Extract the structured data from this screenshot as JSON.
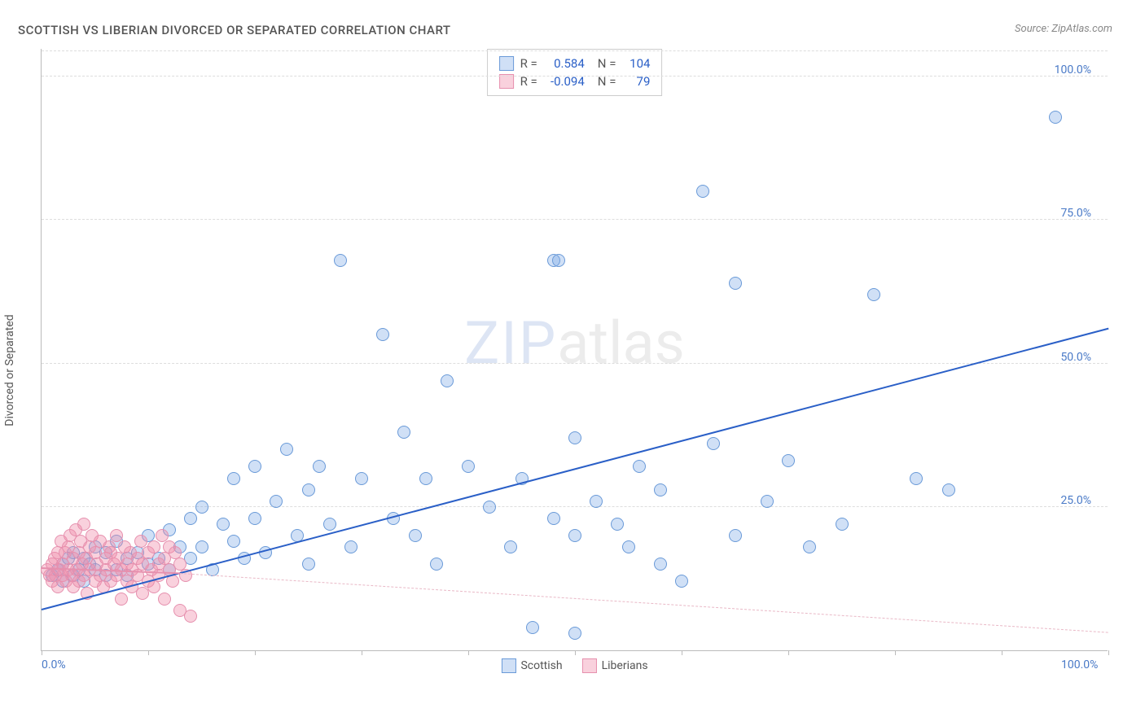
{
  "title": "SCOTTISH VS LIBERIAN DIVORCED OR SEPARATED CORRELATION CHART",
  "source": "Source: ZipAtlas.com",
  "ylabel": "Divorced or Separated",
  "watermark": {
    "strong": "ZIP",
    "light": "atlas"
  },
  "chart": {
    "type": "scatter",
    "xlim": [
      0,
      100
    ],
    "ylim": [
      0,
      105
    ],
    "yticks": [
      25,
      50,
      75,
      100
    ],
    "ytick_labels": [
      "25.0%",
      "50.0%",
      "75.0%",
      "100.0%"
    ],
    "xticks": [
      0,
      10,
      20,
      30,
      40,
      50,
      60,
      70,
      80,
      90,
      100
    ],
    "xtick_labels": {
      "0": "0.0%",
      "100": "100.0%"
    },
    "background_color": "#ffffff",
    "grid_color": "#dddddd",
    "axis_color": "#bbbbbb",
    "marker_radius": 8,
    "marker_stroke": 1.2,
    "series": [
      {
        "key": "scottish",
        "label": "Scottish",
        "fill": "rgba(120,165,230,0.35)",
        "stroke": "#6a9ad8",
        "R": "0.584",
        "N": "104",
        "trend": {
          "x1": 0,
          "y1": 7,
          "x2": 100,
          "y2": 56,
          "color": "#2a5fc7",
          "width": 2.2,
          "dash": "none"
        },
        "points": [
          [
            1,
            13
          ],
          [
            1.5,
            14
          ],
          [
            2,
            12
          ],
          [
            2,
            15
          ],
          [
            2.5,
            16
          ],
          [
            3,
            13
          ],
          [
            3,
            17
          ],
          [
            3.5,
            14
          ],
          [
            4,
            16
          ],
          [
            4,
            12
          ],
          [
            4.5,
            15
          ],
          [
            5,
            14
          ],
          [
            5,
            18
          ],
          [
            6,
            13
          ],
          [
            6,
            17
          ],
          [
            7,
            14
          ],
          [
            7,
            19
          ],
          [
            8,
            16
          ],
          [
            8,
            13
          ],
          [
            9,
            17
          ],
          [
            10,
            15
          ],
          [
            10,
            20
          ],
          [
            11,
            16
          ],
          [
            12,
            21
          ],
          [
            12,
            14
          ],
          [
            13,
            18
          ],
          [
            14,
            23
          ],
          [
            14,
            16
          ],
          [
            15,
            25
          ],
          [
            15,
            18
          ],
          [
            16,
            14
          ],
          [
            17,
            22
          ],
          [
            18,
            19
          ],
          [
            18,
            30
          ],
          [
            19,
            16
          ],
          [
            20,
            23
          ],
          [
            20,
            32
          ],
          [
            21,
            17
          ],
          [
            22,
            26
          ],
          [
            23,
            35
          ],
          [
            24,
            20
          ],
          [
            25,
            28
          ],
          [
            25,
            15
          ],
          [
            26,
            32
          ],
          [
            27,
            22
          ],
          [
            28,
            68
          ],
          [
            29,
            18
          ],
          [
            30,
            30
          ],
          [
            32,
            55
          ],
          [
            33,
            23
          ],
          [
            34,
            38
          ],
          [
            35,
            20
          ],
          [
            36,
            30
          ],
          [
            37,
            15
          ],
          [
            38,
            47
          ],
          [
            40,
            32
          ],
          [
            42,
            25
          ],
          [
            44,
            18
          ],
          [
            45,
            30
          ],
          [
            46,
            4
          ],
          [
            48,
            23
          ],
          [
            48,
            68
          ],
          [
            48.5,
            68
          ],
          [
            50,
            37
          ],
          [
            50,
            20
          ],
          [
            50,
            3
          ],
          [
            52,
            26
          ],
          [
            54,
            22
          ],
          [
            55,
            18
          ],
          [
            56,
            32
          ],
          [
            58,
            15
          ],
          [
            58,
            28
          ],
          [
            60,
            12
          ],
          [
            62,
            80
          ],
          [
            63,
            36
          ],
          [
            65,
            64
          ],
          [
            65,
            20
          ],
          [
            68,
            26
          ],
          [
            70,
            33
          ],
          [
            72,
            18
          ],
          [
            75,
            22
          ],
          [
            78,
            62
          ],
          [
            82,
            30
          ],
          [
            85,
            28
          ],
          [
            95,
            93
          ]
        ]
      },
      {
        "key": "liberians",
        "label": "Liberians",
        "fill": "rgba(240,140,170,0.4)",
        "stroke": "#e690ae",
        "R": "-0.094",
        "N": "79",
        "trend_solid": {
          "x1": 0,
          "y1": 14.2,
          "x2": 13,
          "y2": 13.3,
          "color": "#e690ae",
          "width": 2,
          "dash": "none"
        },
        "trend_dash": {
          "x1": 13,
          "y1": 13.3,
          "x2": 100,
          "y2": 3,
          "color": "#e9b8c6",
          "width": 1.2,
          "dash": "4,4"
        },
        "points": [
          [
            0.5,
            14
          ],
          [
            0.8,
            13
          ],
          [
            1,
            15
          ],
          [
            1,
            12
          ],
          [
            1.2,
            16
          ],
          [
            1.3,
            13
          ],
          [
            1.5,
            17
          ],
          [
            1.5,
            11
          ],
          [
            1.7,
            14
          ],
          [
            1.8,
            19
          ],
          [
            2,
            13
          ],
          [
            2,
            15
          ],
          [
            2.2,
            17
          ],
          [
            2.3,
            12
          ],
          [
            2.5,
            18
          ],
          [
            2.5,
            14
          ],
          [
            2.7,
            20
          ],
          [
            2.8,
            13
          ],
          [
            3,
            16
          ],
          [
            3,
            11
          ],
          [
            3.2,
            21
          ],
          [
            3.3,
            14
          ],
          [
            3.5,
            17
          ],
          [
            3.5,
            12
          ],
          [
            3.7,
            19
          ],
          [
            3.8,
            15
          ],
          [
            4,
            22
          ],
          [
            4,
            13
          ],
          [
            4.2,
            16
          ],
          [
            4.3,
            10
          ],
          [
            4.5,
            18
          ],
          [
            4.5,
            14
          ],
          [
            4.7,
            20
          ],
          [
            5,
            12
          ],
          [
            5,
            17
          ],
          [
            5.2,
            15
          ],
          [
            5.5,
            13
          ],
          [
            5.5,
            19
          ],
          [
            5.8,
            11
          ],
          [
            6,
            16
          ],
          [
            6,
            14
          ],
          [
            6.3,
            18
          ],
          [
            6.5,
            12
          ],
          [
            6.5,
            17
          ],
          [
            6.8,
            15
          ],
          [
            7,
            20
          ],
          [
            7,
            13
          ],
          [
            7.2,
            16
          ],
          [
            7.5,
            14
          ],
          [
            7.5,
            9
          ],
          [
            7.8,
            18
          ],
          [
            8,
            12
          ],
          [
            8,
            15
          ],
          [
            8.3,
            17
          ],
          [
            8.5,
            11
          ],
          [
            8.5,
            14
          ],
          [
            9,
            16
          ],
          [
            9,
            13
          ],
          [
            9.3,
            19
          ],
          [
            9.5,
            10
          ],
          [
            9.5,
            15
          ],
          [
            10,
            17
          ],
          [
            10,
            12
          ],
          [
            10.3,
            14
          ],
          [
            10.5,
            18
          ],
          [
            10.5,
            11
          ],
          [
            11,
            15
          ],
          [
            11,
            13
          ],
          [
            11.3,
            20
          ],
          [
            11.5,
            9
          ],
          [
            11.5,
            16
          ],
          [
            12,
            14
          ],
          [
            12,
            18
          ],
          [
            12.3,
            12
          ],
          [
            12.5,
            17
          ],
          [
            13,
            7
          ],
          [
            13,
            15
          ],
          [
            13.5,
            13
          ],
          [
            14,
            6
          ]
        ]
      }
    ]
  },
  "stats_box": {
    "rows": [
      {
        "swatch_fill": "rgba(120,165,230,0.35)",
        "swatch_stroke": "#6a9ad8",
        "r_label": "R =",
        "r_val": "0.584",
        "n_label": "N =",
        "n_val": "104"
      },
      {
        "swatch_fill": "rgba(240,140,170,0.4)",
        "swatch_stroke": "#e690ae",
        "r_label": "R =",
        "r_val": "-0.094",
        "n_label": "N =",
        "n_val": "79"
      }
    ]
  },
  "legend_bottom": [
    {
      "fill": "rgba(120,165,230,0.35)",
      "stroke": "#6a9ad8",
      "label": "Scottish"
    },
    {
      "fill": "rgba(240,140,170,0.4)",
      "stroke": "#e690ae",
      "label": "Liberians"
    }
  ]
}
